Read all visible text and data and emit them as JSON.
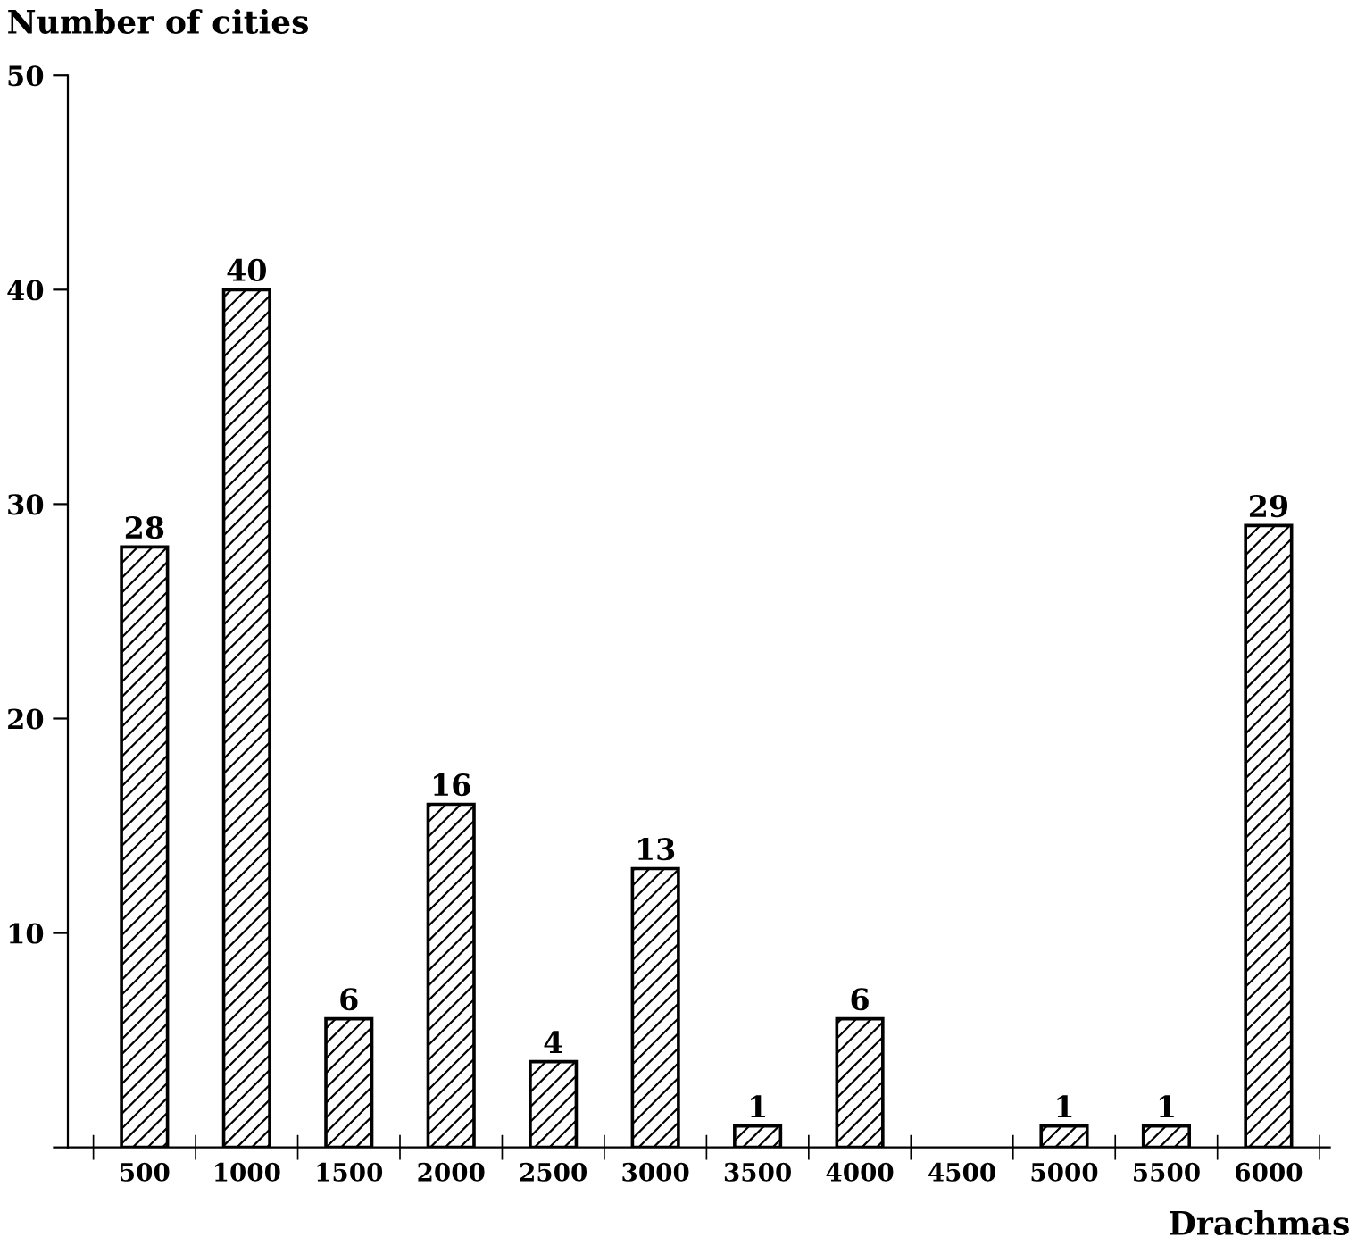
{
  "chart_data": {
    "type": "bar",
    "ylabel": "Number of cities",
    "xlabel": "Drachmas",
    "categories": [
      "500",
      "1000",
      "1500",
      "2000",
      "2500",
      "3000",
      "3500",
      "4000",
      "4500",
      "5000",
      "5500",
      "6000"
    ],
    "values": [
      28,
      40,
      6,
      16,
      4,
      13,
      1,
      6,
      null,
      1,
      1,
      29
    ],
    "color": "#000000",
    "ylim": [
      0,
      50
    ],
    "yticks": [
      {
        "value": 0,
        "label": null
      },
      10,
      20,
      30,
      40,
      50
    ],
    "data_labels": true,
    "grid": false
  }
}
